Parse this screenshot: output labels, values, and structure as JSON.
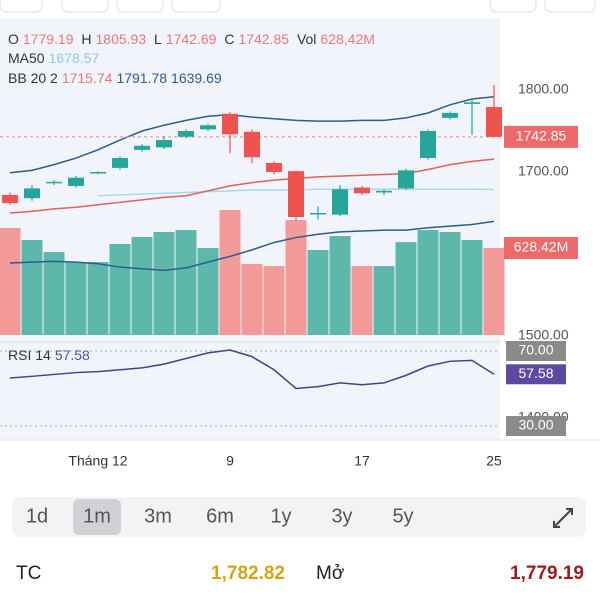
{
  "chart_data": {
    "type": "candlestick",
    "categories": [
      null,
      null,
      null,
      null,
      "Tháng 12",
      null,
      null,
      null,
      null,
      null,
      "9",
      null,
      null,
      null,
      null,
      null,
      "17",
      null,
      null,
      null,
      null,
      null,
      "25"
    ],
    "open": [
      1672,
      1668,
      1687,
      1683,
      1699,
      1705,
      1727,
      1730,
      1743,
      1752,
      1771,
      1749,
      1711,
      1701,
      1649,
      1648,
      1681,
      1675,
      1680,
      1717,
      1766,
      1783,
      1779.19
    ],
    "high": [
      1675,
      1684,
      1690,
      1695,
      1701,
      1719,
      1734,
      1744,
      1752,
      1759,
      1773,
      1752,
      1713,
      1702,
      1658,
      1684,
      1683,
      1679,
      1704,
      1752,
      1774,
      1790,
      1805.93
    ],
    "low": [
      1660,
      1665,
      1684,
      1681,
      1697,
      1703,
      1725,
      1728,
      1741,
      1750,
      1723,
      1711,
      1697,
      1640,
      1642,
      1646,
      1672,
      1672,
      1678,
      1715,
      1764,
      1745,
      1742.69
    ],
    "close": [
      1662,
      1680,
      1688,
      1693,
      1700,
      1717,
      1732,
      1739,
      1750,
      1757,
      1746,
      1718,
      1700,
      1645,
      1650,
      1679,
      1674,
      1677,
      1702,
      1750,
      1772,
      1785,
      1742.85
    ],
    "volume": [
      773,
      686,
      599,
      527,
      527,
      657,
      708,
      744,
      758,
      628,
      903,
      513,
      498,
      830,
      614,
      715,
      498,
      498,
      671,
      758,
      744,
      686,
      628.42
    ],
    "bb_upper": {
      "color": "#2b5d8f",
      "values": [
        1699,
        1702,
        1709,
        1717,
        1727,
        1739,
        1750,
        1757,
        1763,
        1768,
        1770,
        1767,
        1765,
        1763,
        1762,
        1762,
        1763,
        1763,
        1766,
        1772,
        1782,
        1789,
        1791.78
      ]
    },
    "bb_middle": {
      "color": "#e0605a",
      "values": [
        1650,
        1652,
        1655,
        1657,
        1660,
        1663,
        1666,
        1669,
        1671,
        1677,
        1683,
        1687,
        1690,
        1692,
        1694,
        1695,
        1696,
        1697,
        1698,
        1703,
        1709,
        1713,
        1715.74
      ]
    },
    "bb_lower": {
      "color": "#2b5d8f",
      "values": [
        1589,
        1590,
        1591,
        1590,
        1588,
        1584,
        1582,
        1580,
        1583,
        1590,
        1597,
        1605,
        1614,
        1620,
        1624,
        1627,
        1628,
        1629,
        1629,
        1632,
        1634,
        1636,
        1639.69
      ]
    },
    "ma50": {
      "color": "#a8d8ea",
      "values": [
        null,
        null,
        null,
        null,
        1671,
        1672,
        1673,
        1674,
        1675,
        1676,
        1677,
        1678,
        1678,
        1678,
        1679,
        1679,
        1679,
        1679,
        1679,
        1679,
        1679,
        1679,
        1678.57
      ]
    },
    "rsi": {
      "color": "#4a3d8f",
      "values": [
        55.6,
        56.5,
        57.5,
        58.5,
        59,
        60,
        61,
        63,
        66,
        69,
        70.5,
        67,
        60,
        50,
        51,
        53,
        52,
        53,
        57,
        62,
        64.5,
        65,
        57.58
      ]
    },
    "up_color": "#26a69a",
    "down_color": "#ef5350",
    "volume_up_color": "#5db7ab",
    "volume_down_color": "#f29a98",
    "ylim": [
      1373,
      1883
    ],
    "yticks": [
      {
        "value": 1800,
        "label": "1800.00"
      },
      {
        "value": 1700,
        "label": "1700.00"
      },
      {
        "value": 1500,
        "label": "1500.00"
      },
      {
        "value": 1400,
        "label": "1400.00"
      }
    ],
    "volume_lim": [
      0,
      1300
    ],
    "rsi_lim": [
      26.8,
      73.2
    ],
    "rsi_ticks": [
      {
        "value": 70,
        "label": "70.00"
      },
      {
        "value": 30,
        "label": "30.00"
      }
    ],
    "price_tag": "1742.85",
    "volume_tag": "628.42M",
    "rsi_tag": "57.58"
  },
  "header": {
    "o": "O",
    "o_val": "1779.19",
    "h": "H",
    "h_val": "1805.93",
    "l": "L",
    "l_val": "1742.69",
    "c": "C",
    "c_val": "1742.85",
    "vol": "Vol",
    "vol_val": "628,42M",
    "ma": "MA50",
    "ma_val": "1678.57",
    "bb": "BB 20 2",
    "bb_mid": "1715.74",
    "bb_up": "1791.78",
    "bb_low": "1639.69",
    "rsi": "RSI 14",
    "rsi_val": "57.58"
  },
  "ranges": [
    "1d",
    "1m",
    "3m",
    "6m",
    "1y",
    "3y",
    "5y"
  ],
  "stats": {
    "tc_label": "TC",
    "tc_value": "1,782.82",
    "open_label": "Mở",
    "open_value": "1,779.19"
  }
}
